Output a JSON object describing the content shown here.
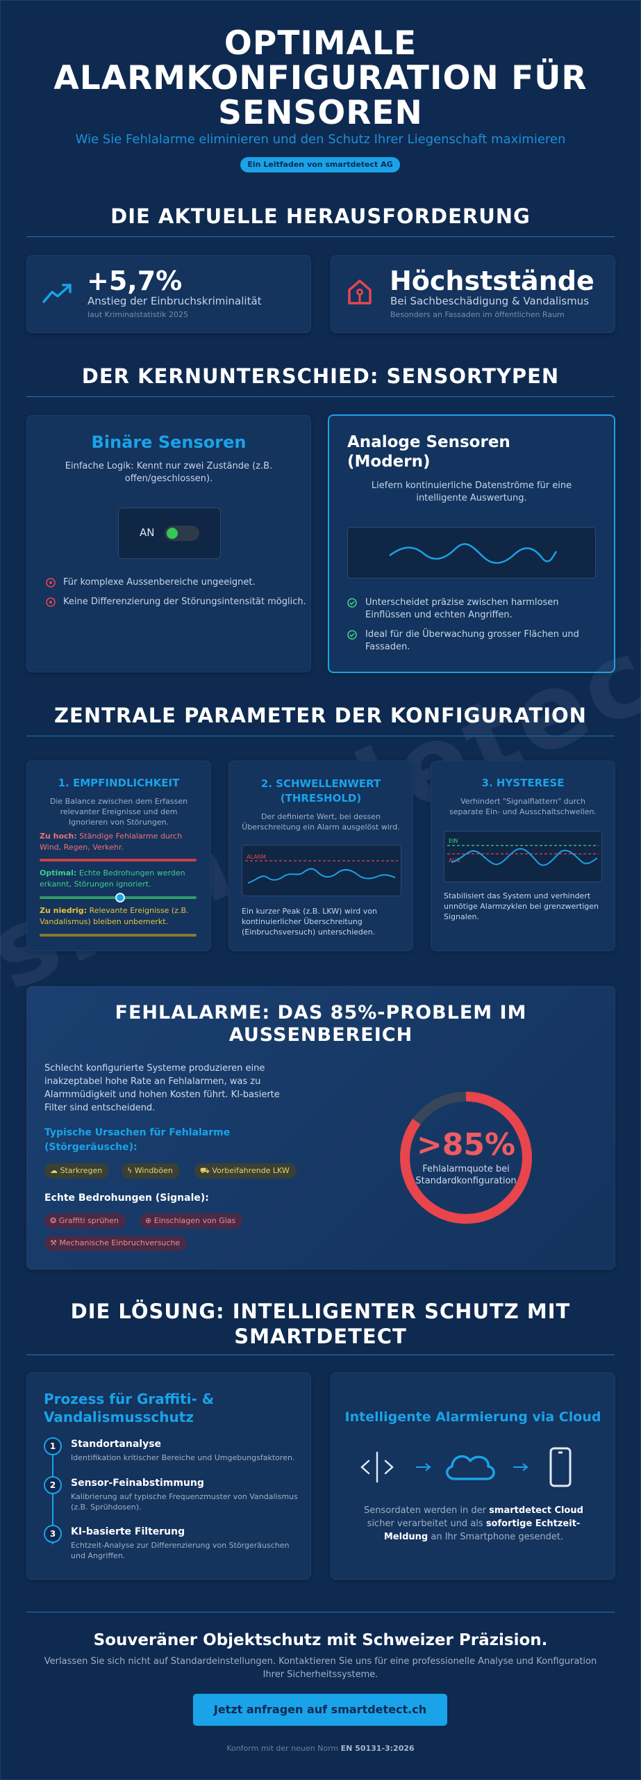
{
  "header": {
    "title_lines": [
      "OPTIMALE",
      "ALARMKONFIGURATION FÜR",
      "SENSOREN"
    ],
    "subtitle": "Wie Sie Fehlalarme eliminieren und den Schutz Ihrer Liegenschaft maximieren",
    "badge": "Ein Leitfaden von smartdetect AG"
  },
  "challenge": {
    "heading": "DIE AKTUELLE HERAUSFORDERUNG",
    "stats": [
      {
        "value": "+5,7%",
        "label": "Anstieg der Einbruchskriminalität",
        "source": "laut Kriminalstatistik 2025",
        "icon": "trend-up-icon"
      },
      {
        "value": "Höchststände",
        "label": "Bei Sachbeschädigung & Vandalismus",
        "source": "Besonders an Fassaden im öffentlichen Raum",
        "icon": "house-icon"
      }
    ]
  },
  "sensors": {
    "heading": "DER KERNUNTERSCHIED: SENSORTYPEN",
    "binary": {
      "title": "Binäre Sensoren",
      "desc": "Einfache Logik: Kennt nur zwei Zustände (z.B. offen/geschlossen).",
      "toggle_label": "AN",
      "cons": [
        "Für komplexe Aussenbereiche ungeeignet.",
        "Keine Differenzierung der Störungsintensität möglich."
      ]
    },
    "analog": {
      "title_lines": [
        "Analoge Sensoren",
        "(Modern)"
      ],
      "desc": "Liefern kontinuierliche Datenströme für eine intelligente Auswertung.",
      "pros": [
        "Unterscheidet präzise zwischen harmlosen Einflüssen und echten Angriffen.",
        "Ideal für die Überwachung grosser Flächen und Fassaden."
      ]
    }
  },
  "parameters": {
    "heading": "ZENTRALE PARAMETER DER KONFIGURATION",
    "sensitivity": {
      "title": "1. EMPFINDLICHKEIT",
      "desc": "Die Balance zwischen dem Erfassen relevanter Ereignisse und dem Ignorieren von Störungen.",
      "levels": [
        {
          "label": "Zu hoch:",
          "text": "Ständige Fehlalarme durch Wind, Regen, Verkehr."
        },
        {
          "label": "Optimal:",
          "text": "Echte Bedrohungen werden erkannt, Störungen ignoriert."
        },
        {
          "label": "Zu niedrig:",
          "text": "Relevante Ereignisse (z.B. Vandalismus) bleiben unbemerkt."
        }
      ]
    },
    "threshold": {
      "title_lines": [
        "2. SCHWELLENWERT",
        "(THRESHOLD)"
      ],
      "desc": "Der definierte Wert, bei dessen Überschreitung ein Alarm ausgelöst wird.",
      "chart_label": "ALARM",
      "note": "Ein kurzer Peak (z.B. LKW) wird von kontinuierlicher Überschreitung (Einbruchsversuch) unterschieden."
    },
    "hysteresis": {
      "title": "3. HYSTERESE",
      "desc": "Verhindert \"Signalflattern\" durch separate Ein- und Ausschaltschwellen.",
      "label_on": "EIN",
      "label_off": "AUS",
      "note": "Stabilisiert das System und verhindert unnötige Alarmzyklen bei grenzwertigen Signalen."
    }
  },
  "false_alarms": {
    "heading_lines": [
      "FEHLALARME: DAS 85%-PROBLEM IM",
      "AUSSENBEREICH"
    ],
    "intro": "Schlecht konfigurierte Systeme produzieren eine inakzeptabel hohe Rate an Fehlalarmen, was zu Alarmmüdigkeit und hohen Kosten führt. KI-basierte Filter sind entscheidend.",
    "causes_title_lines": [
      "Typische Ursachen für Fehlalarme",
      "(Störgeräusche):"
    ],
    "causes": [
      "Starkregen",
      "Windböen",
      "Vorbeifahrende LKW"
    ],
    "threats_title": "Echte Bedrohungen (Signale):",
    "threats": [
      "Graffiti sprühen",
      "Einschlagen von Glas",
      "Mechanische Einbruchversuche"
    ],
    "gauge_value": ">85%",
    "gauge_fraction": 0.85,
    "gauge_label_lines": [
      "Fehlalarmquote bei",
      "Standardkonfiguration"
    ]
  },
  "solution": {
    "heading_lines": [
      "DIE LÖSUNG: INTELLIGENTER SCHUTZ MIT",
      "SMARTDETECT"
    ],
    "process": {
      "title_lines": [
        "Prozess für Graffiti- &",
        "Vandalismusschutz"
      ],
      "steps": [
        {
          "num": "1",
          "title": "Standortanalyse",
          "text": "Identifikation kritischer Bereiche und Umgebungsfaktoren."
        },
        {
          "num": "2",
          "title": "Sensor-Feinabstimmung",
          "text": "Kalibrierung auf typische Frequenzmuster von Vandalismus (z.B. Sprühdosen)."
        },
        {
          "num": "3",
          "title": "KI-basierte Filterung",
          "text": "Echtzeit-Analyse zur Differenzierung von Störgeräuschen und Angriffen."
        }
      ]
    },
    "cloud": {
      "title": "Intelligente Alarmierung via Cloud",
      "text_a": "Sensordaten werden in der ",
      "text_b": "smartdetect Cloud",
      "text_c": " sicher verarbeitet und als ",
      "text_d": "sofortige Echtzeit-Meldung",
      "text_e": " an Ihr Smartphone gesendet."
    }
  },
  "footer": {
    "title": "Souveräner Objektschutz mit Schweizer Präzision.",
    "text": "Verlassen Sie sich nicht auf Standardeinstellungen. Kontaktieren Sie uns für eine professionelle Analyse und Konfiguration Ihrer Sicherheitssysteme.",
    "cta": "Jetzt anfragen auf smartdetect.ch",
    "norm_prefix": "Konform mit der neuen Norm",
    "norm": "EN 50131-3:2026"
  },
  "watermark": "smartdetect.ch",
  "colors": {
    "accent": "#1aa3e8",
    "background": "#0f2a50",
    "alarm": "#e8454d",
    "ok": "#3ecf8e",
    "warn": "#e8c33a"
  }
}
